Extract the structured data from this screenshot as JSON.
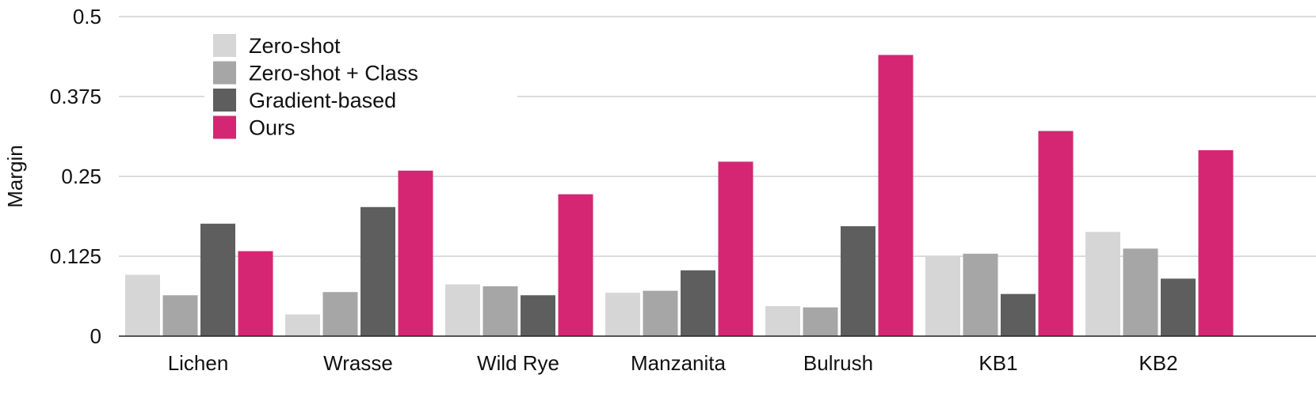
{
  "chart_data": {
    "type": "bar",
    "ylabel": "Margin",
    "ylim": [
      0,
      0.5
    ],
    "yticks": [
      "0",
      "0.125",
      "0.25",
      "0.375",
      "0.5"
    ],
    "ytick_values": [
      0,
      0.125,
      0.25,
      0.375,
      0.5
    ],
    "grid": true,
    "legend_position": "top-left",
    "categories": [
      "Lichen",
      "Wrasse",
      "Wild Rye",
      "Manzanita",
      "Bulrush",
      "KB1",
      "KB2"
    ],
    "series": [
      {
        "name": "Zero-shot",
        "color": "#d6d6d6",
        "values": [
          0.096,
          0.034,
          0.081,
          0.068,
          0.047,
          0.124,
          0.163
        ]
      },
      {
        "name": "Zero-shot + Class",
        "color": "#a6a6a6",
        "values": [
          0.064,
          0.069,
          0.078,
          0.071,
          0.045,
          0.129,
          0.137
        ]
      },
      {
        "name": "Gradient-based",
        "color": "#5e5e5e",
        "values": [
          0.176,
          0.202,
          0.064,
          0.103,
          0.172,
          0.066,
          0.09
        ]
      },
      {
        "name": "Ours",
        "color": "#d52673",
        "values": [
          0.133,
          0.259,
          0.222,
          0.273,
          0.44,
          0.321,
          0.291
        ]
      }
    ]
  }
}
